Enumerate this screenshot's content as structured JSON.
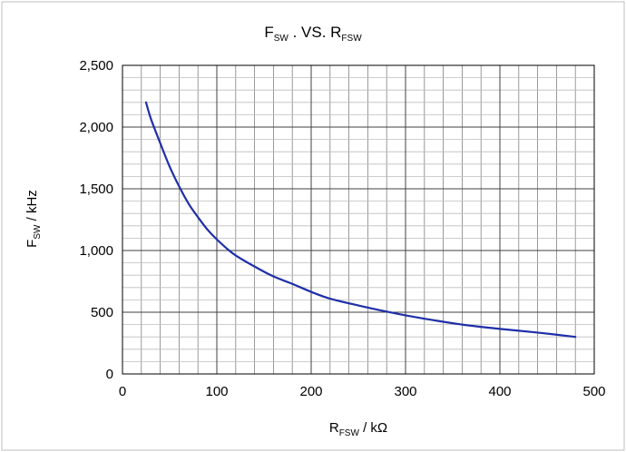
{
  "chart_data": {
    "type": "line",
    "title": {
      "main": "F",
      "sub": "SW",
      "rest": " . VS. R",
      "sub2": "FSW"
    },
    "xlabel": {
      "main": "R",
      "sub": "FSW",
      "rest": " / kΩ"
    },
    "ylabel": {
      "main": "F",
      "sub": "SW",
      "rest": " / kHz"
    },
    "xlim": [
      0,
      500
    ],
    "ylim": [
      0,
      2500
    ],
    "x_ticks": [
      0,
      100,
      200,
      300,
      400,
      500
    ],
    "x_tick_labels": [
      "0",
      "100",
      "200",
      "300",
      "400",
      "500"
    ],
    "y_ticks": [
      0,
      500,
      1000,
      1500,
      2000,
      2500
    ],
    "y_tick_labels": [
      "0",
      "500",
      "1,000",
      "1,500",
      "2,000",
      "2,500"
    ],
    "x_minor_step": 20,
    "y_minor_step": 100,
    "grid": true,
    "line_color": "#1f2fa8",
    "series": [
      {
        "x": [
          25,
          30,
          40,
          50,
          60,
          70,
          80,
          90,
          100,
          110,
          120,
          140,
          160,
          180,
          200,
          220,
          250,
          280,
          300,
          330,
          360,
          400,
          440,
          480
        ],
        "values": [
          2200,
          2070,
          1870,
          1680,
          1520,
          1380,
          1270,
          1170,
          1090,
          1020,
          960,
          870,
          790,
          730,
          665,
          610,
          555,
          505,
          475,
          435,
          400,
          365,
          335,
          300
        ]
      }
    ]
  }
}
